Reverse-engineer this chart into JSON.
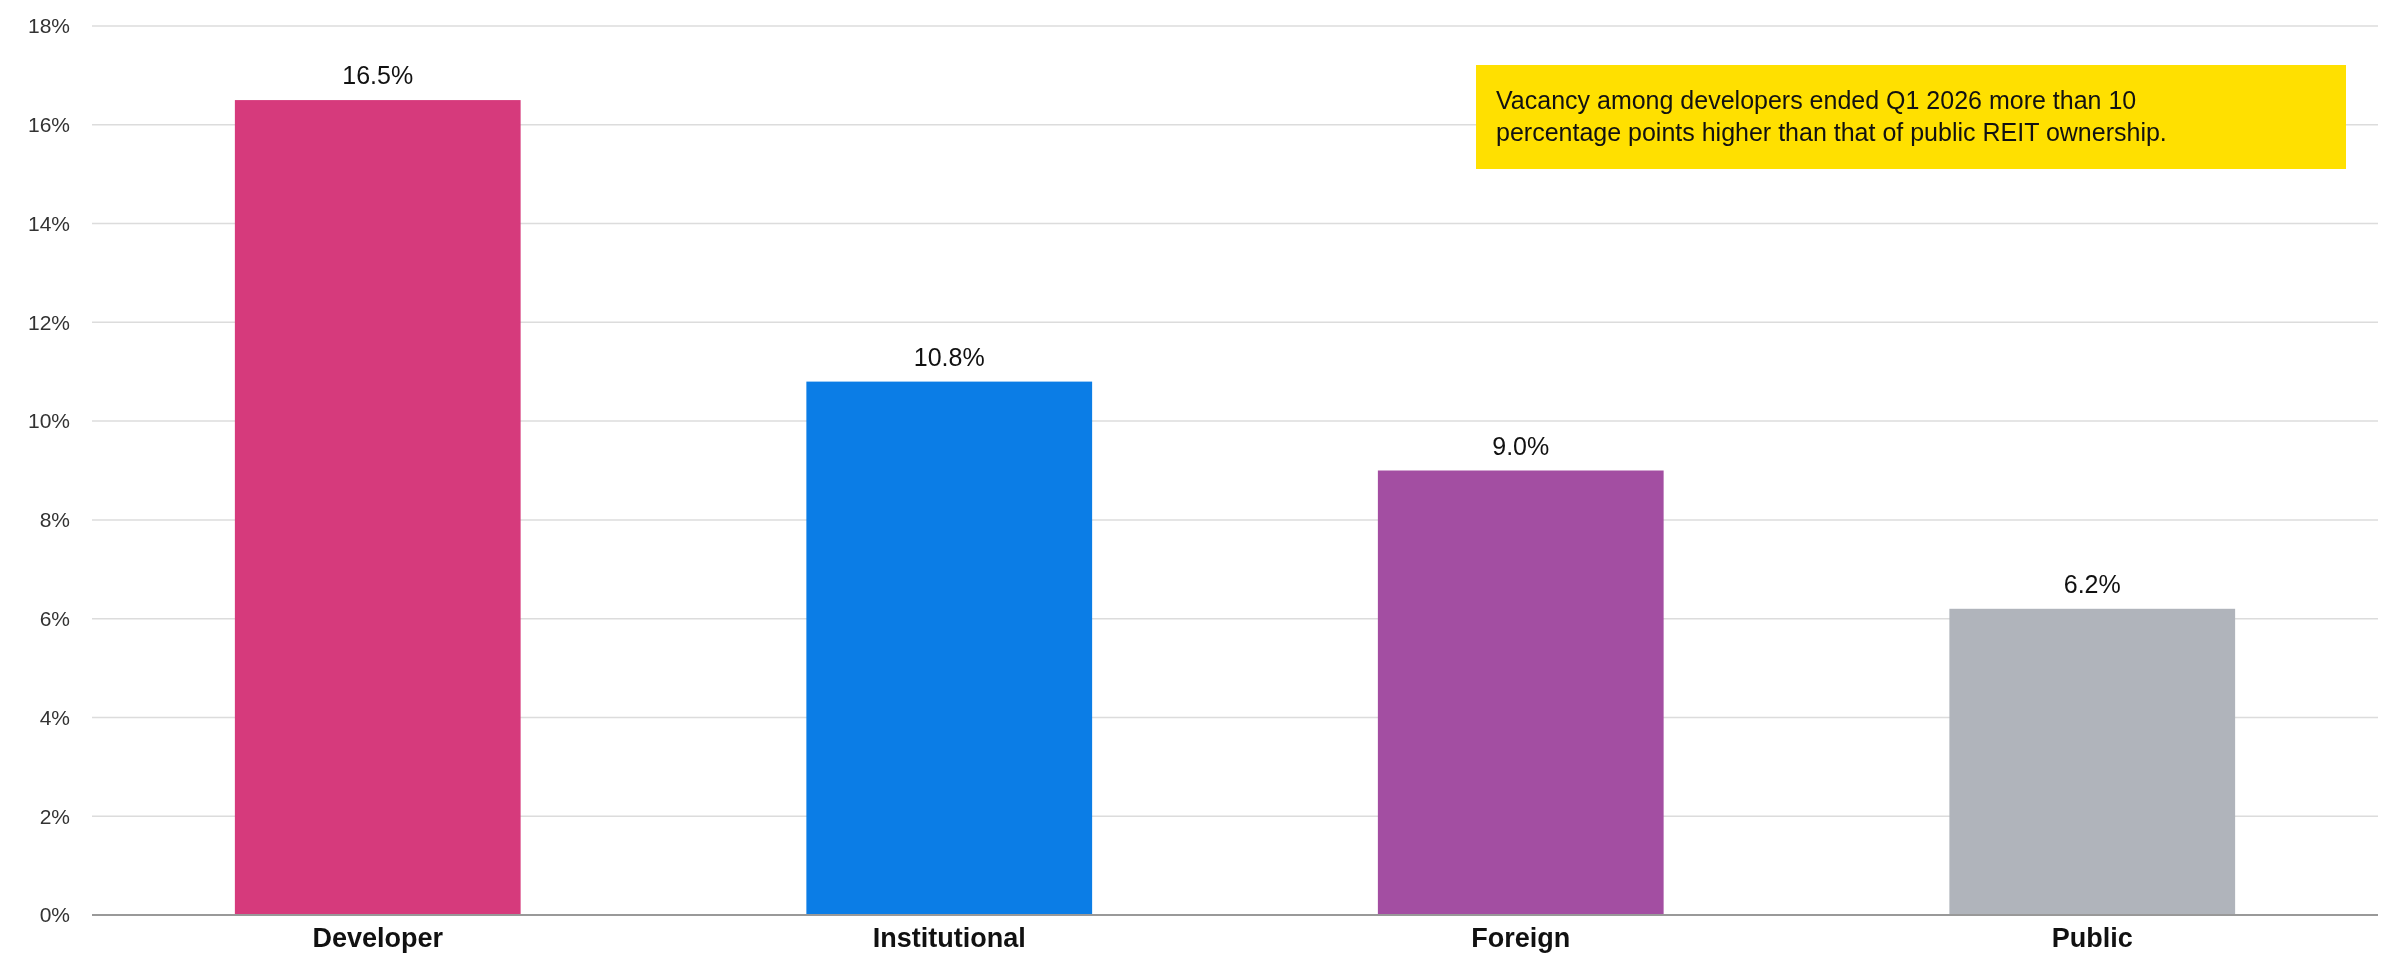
{
  "chart_data": {
    "type": "bar",
    "categories": [
      "Developer",
      "Institutional",
      "Foreign",
      "Public"
    ],
    "values": [
      16.5,
      10.8,
      9.0,
      6.2
    ],
    "colors": [
      "#d63a7c",
      "#0b7de6",
      "#a34ea2",
      "#b0b4bb"
    ],
    "value_labels": [
      "16.5%",
      "10.8%",
      "9.0%",
      "6.2%"
    ],
    "ylim": [
      0,
      18
    ],
    "yticks": [
      {
        "value": 0,
        "label": "0%"
      },
      {
        "value": 2,
        "label": "2%"
      },
      {
        "value": 4,
        "label": "4%"
      },
      {
        "value": 6,
        "label": "6%"
      },
      {
        "value": 8,
        "label": "8%"
      },
      {
        "value": 10,
        "label": "10%"
      },
      {
        "value": 12,
        "label": "12%"
      },
      {
        "value": 14,
        "label": "14%"
      },
      {
        "value": 16,
        "label": "16%"
      },
      {
        "value": 18,
        "label": "18%"
      }
    ],
    "grid": "y",
    "annotations": [
      "Vacancy among developers ended Q1 2026 more than 10 percentage points higher than that of public REIT ownership."
    ]
  }
}
